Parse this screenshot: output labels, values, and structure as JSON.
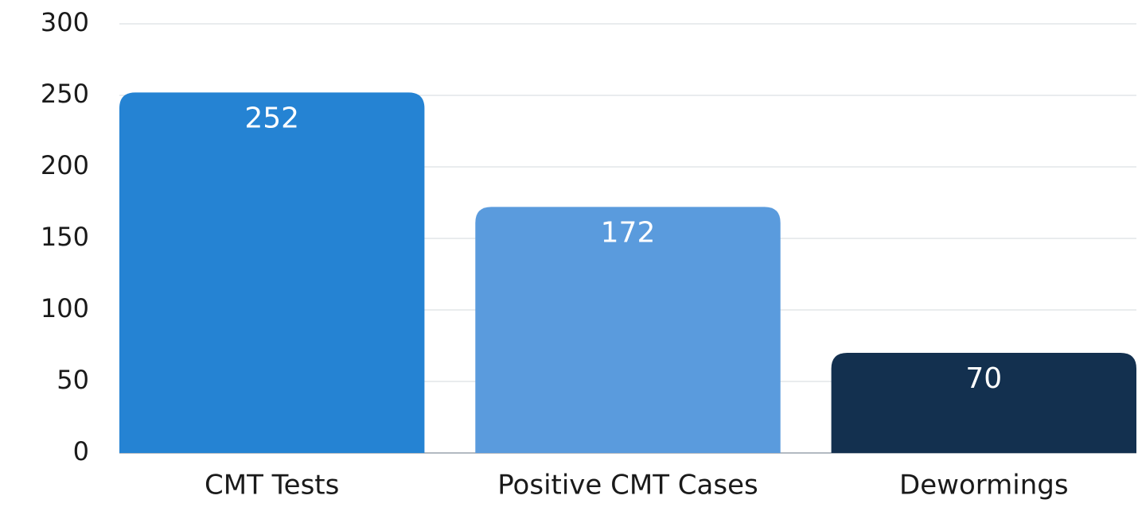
{
  "chart_data": {
    "type": "bar",
    "categories": [
      "CMT Tests",
      "Positive CMT Cases",
      "Dewormings"
    ],
    "values": [
      252,
      172,
      70
    ],
    "colors": [
      "#2583d3",
      "#5a9bdd",
      "#13304f"
    ],
    "ylim": [
      0,
      300
    ],
    "yticks": [
      0,
      50,
      100,
      150,
      200,
      250,
      300
    ],
    "grid": true
  }
}
